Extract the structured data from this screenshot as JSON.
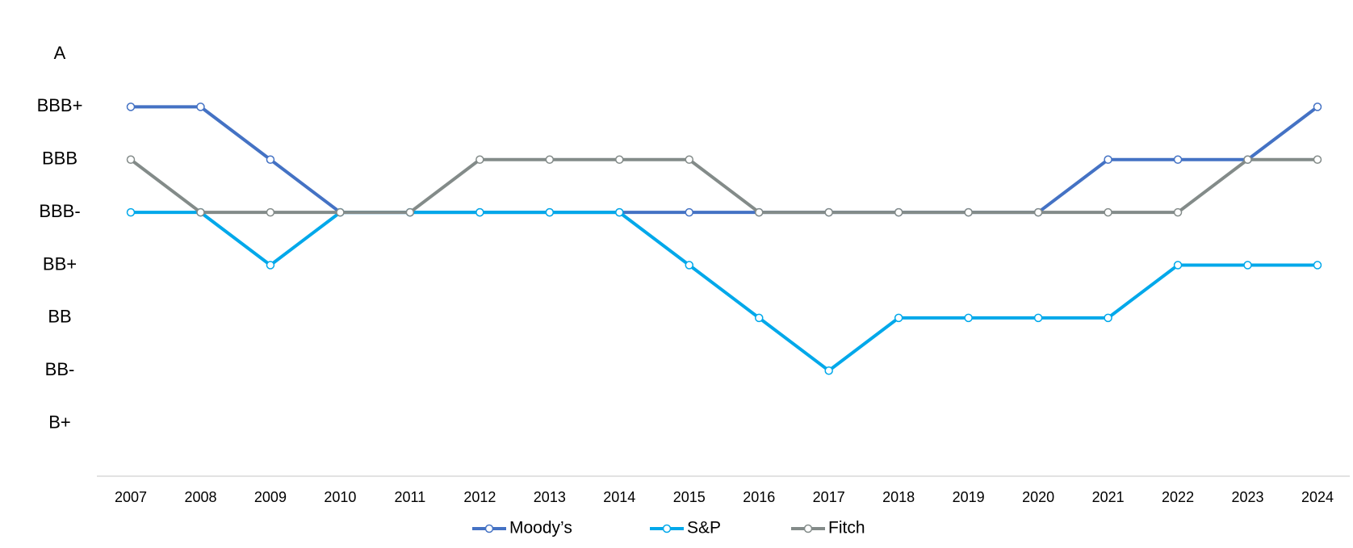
{
  "chart_data": {
    "type": "line",
    "categories": [
      "2007",
      "2008",
      "2009",
      "2010",
      "2011",
      "2012",
      "2013",
      "2014",
      "2015",
      "2016",
      "2017",
      "2018",
      "2019",
      "2020",
      "2021",
      "2022",
      "2023",
      "2024"
    ],
    "series": [
      {
        "name": "Moody’s",
        "color": "#4472c4",
        "values": [
          7,
          7,
          6,
          5,
          5,
          5,
          5,
          5,
          5,
          5,
          5,
          5,
          5,
          5,
          6,
          6,
          6,
          7
        ]
      },
      {
        "name": "S&P",
        "color": "#00a8ea",
        "values": [
          5,
          5,
          4,
          5,
          5,
          5,
          5,
          5,
          4,
          3,
          2,
          3,
          3,
          3,
          3,
          4,
          4,
          4
        ]
      },
      {
        "name": "Fitch",
        "color": "#838b89",
        "values": [
          6,
          5,
          5,
          5,
          5,
          6,
          6,
          6,
          6,
          5,
          5,
          5,
          5,
          5,
          5,
          5,
          6,
          6
        ]
      }
    ],
    "ylim": [
      0,
      8
    ],
    "yticks": [
      {
        "value": 8,
        "label": "A"
      },
      {
        "value": 7,
        "label": "BBB+"
      },
      {
        "value": 6,
        "label": "BBB"
      },
      {
        "value": 5,
        "label": "BBB-"
      },
      {
        "value": 4,
        "label": "BB+"
      },
      {
        "value": 3,
        "label": "BB"
      },
      {
        "value": 2,
        "label": "BB-"
      },
      {
        "value": 1,
        "label": "B+"
      }
    ],
    "legend": "bottom"
  }
}
